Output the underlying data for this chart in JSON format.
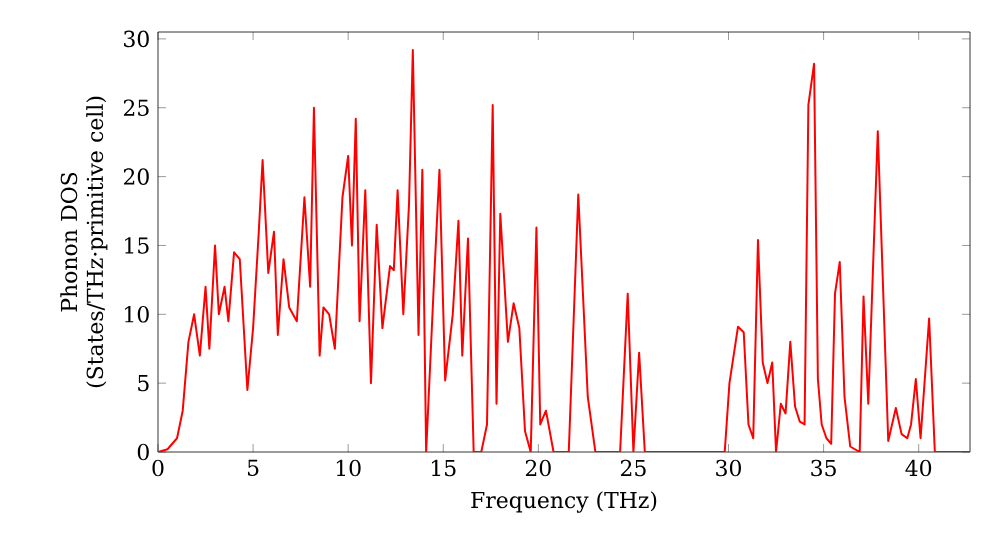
{
  "chart_data": {
    "type": "line",
    "xlabel": "Frequency (THz)",
    "ylabel": "Phonon DOS (States/THz·primitive cell)",
    "xlim": [
      0,
      42.7
    ],
    "ylim": [
      0,
      30.5
    ],
    "xticks": [
      0,
      5,
      10,
      15,
      20,
      25,
      30,
      35,
      40
    ],
    "yticks": [
      0,
      5,
      10,
      15,
      20,
      25,
      30
    ],
    "grid": false,
    "marker": "none",
    "line_style": "solid",
    "series": [
      {
        "color": "#ff0000",
        "x": [
          0,
          0.5,
          1,
          1.3,
          1.6,
          1.9,
          2.2,
          2.5,
          2.7,
          3,
          3.2,
          3.5,
          3.7,
          4,
          4.3,
          4.7,
          5.0,
          5.3,
          5.5,
          5.8,
          6.1,
          6.3,
          6.6,
          6.9,
          7.3,
          7.7,
          8.0,
          8.2,
          8.5,
          8.7,
          9.0,
          9.3,
          9.7,
          10.0,
          10.2,
          10.4,
          10.6,
          10.9,
          11.2,
          11.5,
          11.8,
          12.2,
          12.4,
          12.6,
          12.9,
          13.2,
          13.4,
          13.7,
          13.9,
          14.1,
          14.5,
          14.8,
          15.1,
          15.5,
          15.8,
          16.0,
          16.3,
          16.6,
          17.0,
          17.3,
          17.6,
          17.8,
          18.0,
          18.4,
          18.7,
          19.0,
          19.3,
          19.6,
          19.9,
          20.1,
          20.4,
          20.8,
          21.6,
          22.1,
          22.6,
          23.0,
          24.3,
          24.7,
          25.0,
          25.3,
          25.6,
          29.8,
          30.05,
          30.5,
          30.8,
          31.05,
          31.3,
          31.55,
          31.8,
          32.05,
          32.3,
          32.5,
          32.75,
          33,
          33.25,
          33.5,
          33.75,
          34,
          34.2,
          34.5,
          34.7,
          34.9,
          35.15,
          35.4,
          35.6,
          35.85,
          36.1,
          36.4,
          36.9,
          37.1,
          37.35,
          37.85,
          38.4,
          38.8,
          39.1,
          39.4,
          39.6,
          39.85,
          40.1,
          40.55,
          40.85,
          42.7
        ],
        "values": [
          0,
          0.2,
          1,
          3,
          8,
          10,
          7,
          12,
          7.5,
          15,
          10,
          12,
          9.5,
          14.5,
          14,
          4.5,
          9,
          16,
          21.2,
          13,
          16,
          8.5,
          14,
          10.5,
          9.5,
          18.5,
          12,
          25,
          7,
          10.5,
          10,
          7.5,
          18.5,
          21.5,
          15,
          24.2,
          9.5,
          19,
          5,
          16.5,
          9,
          13.5,
          13.2,
          19,
          10,
          18,
          29.2,
          8.5,
          20.5,
          0,
          12,
          20.5,
          5.2,
          10,
          16.8,
          7,
          15.5,
          0,
          0,
          2,
          25.2,
          3.5,
          17.3,
          8,
          10.8,
          9,
          1.5,
          0,
          16.3,
          2,
          3,
          0,
          0,
          18.7,
          4,
          0,
          0,
          11.5,
          0,
          7.2,
          0,
          0,
          5,
          9.1,
          8.7,
          2,
          1,
          15.4,
          6.5,
          5,
          6.5,
          0,
          3.5,
          2.8,
          8,
          3.3,
          2.2,
          2,
          25.2,
          28.2,
          5.3,
          2,
          1,
          0.6,
          11.5,
          13.8,
          4,
          0.4,
          0,
          11.3,
          3.5,
          23.3,
          0.8,
          3.2,
          1.3,
          1,
          2,
          5.3,
          1,
          9.7,
          0,
          0
        ]
      }
    ]
  }
}
